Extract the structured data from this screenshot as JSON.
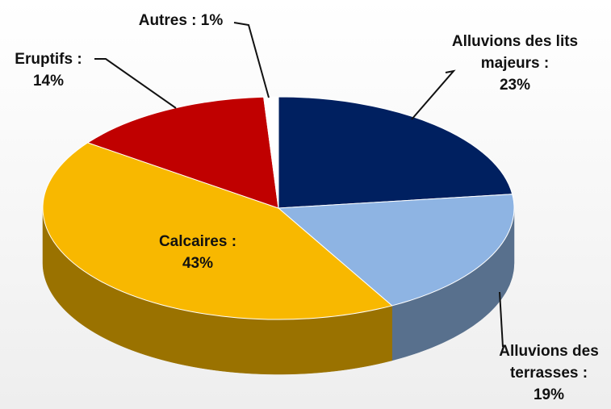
{
  "chart_data": {
    "type": "pie",
    "categories": [
      "Alluvions des lits majeurs :",
      "Alluvions des terrasses :",
      "Calcaires :",
      "Eruptifs :",
      "Autres :"
    ],
    "values": [
      23,
      19,
      43,
      14,
      1
    ],
    "value_labels": [
      "23%",
      "19%",
      "43%",
      "14%",
      "1%"
    ],
    "colors": [
      "#002060",
      "#8eb4e3",
      "#f8b800",
      "#c00000",
      "#ffffff"
    ]
  }
}
